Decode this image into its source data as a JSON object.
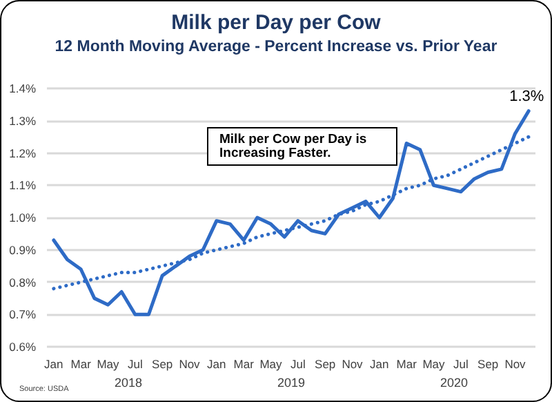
{
  "chart_data": {
    "type": "line",
    "title": "Milk per Day per Cow",
    "subtitle": "12 Month Moving Average - Percent Increase vs. Prior Year",
    "categories": [
      "Jan",
      null,
      "Mar",
      null,
      "May",
      null,
      "Jul",
      null,
      "Sep",
      null,
      "Nov",
      null,
      "Jan",
      null,
      "Mar",
      null,
      "May",
      null,
      "Jul",
      null,
      "Sep",
      null,
      "Nov",
      null,
      "Jan",
      null,
      "Mar",
      null,
      "May",
      null,
      "Jul",
      null,
      "Sep",
      null,
      "Nov",
      null
    ],
    "series": [
      {
        "color": "#2e6bc6",
        "line_style": "solid",
        "values": [
          0.93,
          0.87,
          0.84,
          0.75,
          0.73,
          0.77,
          0.7,
          0.7,
          0.82,
          0.85,
          0.88,
          0.9,
          0.99,
          0.98,
          0.93,
          1.0,
          0.98,
          0.94,
          0.99,
          0.96,
          0.95,
          1.01,
          1.03,
          1.05,
          1.0,
          1.06,
          1.23,
          1.21,
          1.1,
          1.09,
          1.08,
          1.12,
          1.14,
          1.15,
          1.26,
          1.33
        ],
        "value_labels": [
          null,
          null,
          null,
          null,
          null,
          null,
          null,
          null,
          null,
          null,
          null,
          null,
          null,
          null,
          null,
          null,
          null,
          null,
          null,
          null,
          null,
          null,
          null,
          null,
          null,
          null,
          null,
          null,
          null,
          null,
          null,
          null,
          null,
          null,
          null,
          "1.3%"
        ]
      },
      {
        "type": "line",
        "color": "#2e6bc6",
        "line_style": "dotted",
        "values": [
          0.78,
          0.79,
          0.8,
          0.81,
          0.82,
          0.83,
          0.83,
          0.84,
          0.85,
          0.86,
          0.87,
          0.89,
          0.9,
          0.91,
          0.92,
          0.94,
          0.95,
          0.96,
          0.97,
          0.98,
          0.99,
          1.01,
          1.02,
          1.04,
          1.05,
          1.07,
          1.09,
          1.1,
          1.12,
          1.13,
          1.15,
          1.17,
          1.19,
          1.21,
          1.23,
          1.25
        ]
      }
    ],
    "ylim": [
      0.6,
      1.4
    ],
    "yticks": [
      {
        "value": 0.6,
        "label": "0.6%"
      },
      {
        "value": 0.7,
        "label": "0.7%"
      },
      {
        "value": 0.8,
        "label": "0.8%"
      },
      {
        "value": 0.9,
        "label": "0.9%"
      },
      {
        "value": 1.0,
        "label": "1.0%"
      },
      {
        "value": 1.1,
        "label": "1.1%"
      },
      {
        "value": 1.2,
        "label": "1.2%"
      },
      {
        "value": 1.3,
        "label": "1.3%"
      },
      {
        "value": 1.4,
        "label": "1.4%"
      }
    ],
    "grid": "y",
    "marker": "none",
    "annotations": [
      "Milk per Cow per Day is Increasing Faster.",
      "2018",
      "2019",
      "2020",
      "Source: USDA"
    ]
  }
}
